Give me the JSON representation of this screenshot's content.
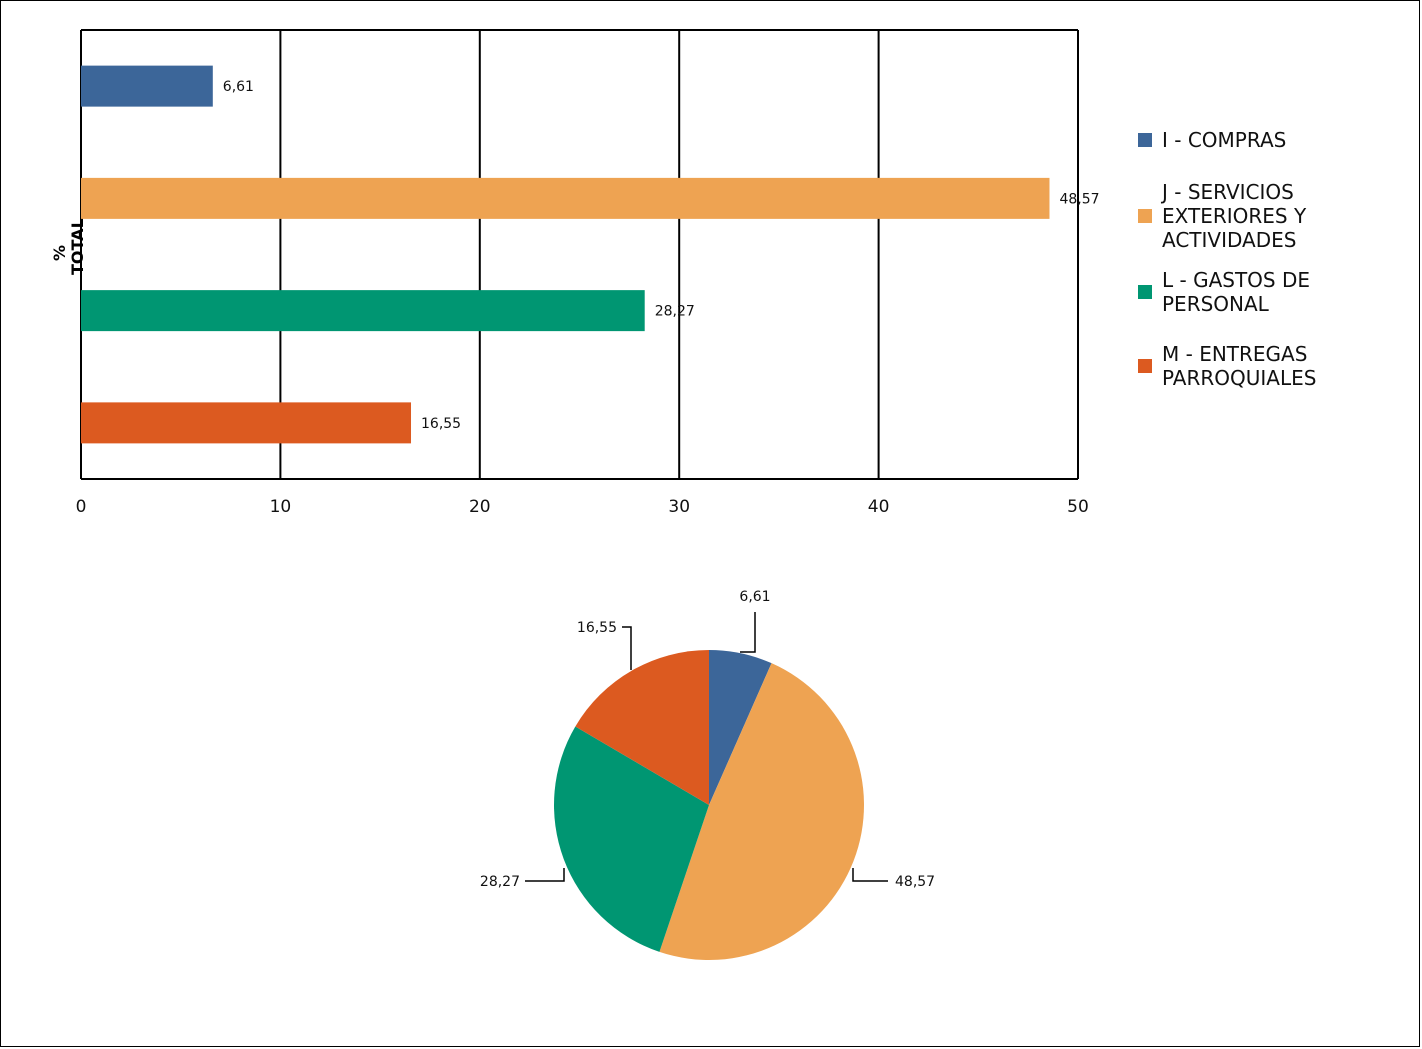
{
  "chart_data": [
    {
      "type": "bar",
      "orientation": "horizontal",
      "ylabel": "% TOTAL",
      "xlim": [
        0,
        50
      ],
      "xticks": [
        "0",
        "10",
        "20",
        "30",
        "40",
        "50"
      ],
      "grid": true,
      "legend_position": "right",
      "categories": [
        "I - COMPRAS",
        "J - SERVICIOS EXTERIORES Y ACTIVIDADES",
        "L - GASTOS DE PERSONAL",
        "M - ENTREGAS PARROQUIALES"
      ],
      "values": [
        6.61,
        48.57,
        28.27,
        16.55
      ],
      "value_labels": [
        "6,61",
        "48,57",
        "28,27",
        "16,55"
      ],
      "colors": [
        "#3c6699",
        "#eea352",
        "#009672",
        "#dc5a20"
      ]
    },
    {
      "type": "pie",
      "categories": [
        "I - COMPRAS",
        "J - SERVICIOS EXTERIORES Y ACTIVIDADES",
        "L - GASTOS DE PERSONAL",
        "M - ENTREGAS PARROQUIALES"
      ],
      "values": [
        6.61,
        48.57,
        28.27,
        16.55
      ],
      "value_labels": [
        "6,61",
        "48,57",
        "28,27",
        "16,55"
      ],
      "colors": [
        "#3c6699",
        "#eea352",
        "#009672",
        "#dc5a20"
      ]
    }
  ],
  "legend": [
    {
      "lines": [
        "I - COMPRAS"
      ],
      "color": "#3c6699"
    },
    {
      "lines": [
        "J - SERVICIOS",
        "EXTERIORES Y",
        "ACTIVIDADES"
      ],
      "color": "#eea352"
    },
    {
      "lines": [
        "L - GASTOS DE",
        "PERSONAL"
      ],
      "color": "#009672"
    },
    {
      "lines": [
        "M - ENTREGAS",
        "PARROQUIALES"
      ],
      "color": "#dc5a20"
    }
  ]
}
